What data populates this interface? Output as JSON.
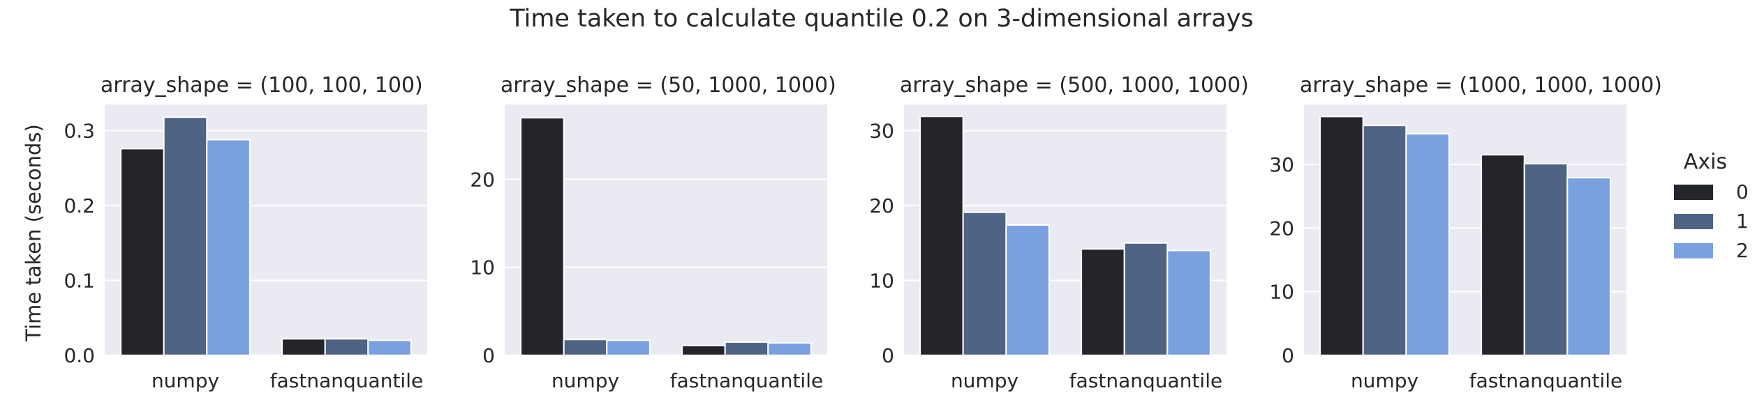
{
  "figure": {
    "title": "Time taken to calculate quantile 0.2 on 3-dimensional arrays",
    "ylabel": "Time taken (seconds)"
  },
  "legend": {
    "title": "Axis",
    "entries": [
      "0",
      "1",
      "2"
    ],
    "placement": "right"
  },
  "colors": {
    "panel_bg": "#eaeaf2",
    "grid": "#ffffff",
    "series": [
      "#23252b",
      "#4f6384",
      "#7aa0e0"
    ]
  },
  "chart_data": [
    {
      "type": "bar",
      "title": "array_shape = (100, 100, 100)",
      "categories": [
        "numpy",
        "fastnanquantile"
      ],
      "series": [
        {
          "name": "0",
          "values": [
            0.276,
            0.022
          ]
        },
        {
          "name": "1",
          "values": [
            0.318,
            0.022
          ]
        },
        {
          "name": "2",
          "values": [
            0.288,
            0.02
          ]
        }
      ],
      "ylim": [
        0,
        0.335
      ],
      "yticks": [
        0.0,
        0.1,
        0.2,
        0.3
      ],
      "ytick_labels": [
        "0.0",
        "0.1",
        "0.2",
        "0.3"
      ],
      "grid": true
    },
    {
      "type": "bar",
      "title": "array_shape = (50, 1000, 1000)",
      "categories": [
        "numpy",
        "fastnanquantile"
      ],
      "series": [
        {
          "name": "0",
          "values": [
            27.0,
            1.1
          ]
        },
        {
          "name": "1",
          "values": [
            1.8,
            1.5
          ]
        },
        {
          "name": "2",
          "values": [
            1.7,
            1.4
          ]
        }
      ],
      "ylim": [
        0,
        28.5
      ],
      "yticks": [
        0,
        10,
        20
      ],
      "ytick_labels": [
        "0",
        "10",
        "20"
      ],
      "grid": true
    },
    {
      "type": "bar",
      "title": "array_shape = (500, 1000, 1000)",
      "categories": [
        "numpy",
        "fastnanquantile"
      ],
      "series": [
        {
          "name": "0",
          "values": [
            31.9,
            14.2
          ]
        },
        {
          "name": "1",
          "values": [
            19.1,
            15.0
          ]
        },
        {
          "name": "2",
          "values": [
            17.4,
            14.0
          ]
        }
      ],
      "ylim": [
        0,
        33.5
      ],
      "yticks": [
        0,
        10,
        20,
        30
      ],
      "ytick_labels": [
        "0",
        "10",
        "20",
        "30"
      ],
      "grid": true
    },
    {
      "type": "bar",
      "title": "array_shape = (1000, 1000, 1000)",
      "categories": [
        "numpy",
        "fastnanquantile"
      ],
      "series": [
        {
          "name": "0",
          "values": [
            37.5,
            31.5
          ]
        },
        {
          "name": "1",
          "values": [
            36.1,
            30.1
          ]
        },
        {
          "name": "2",
          "values": [
            34.8,
            27.9
          ]
        }
      ],
      "ylim": [
        0,
        39.4
      ],
      "yticks": [
        0,
        10,
        20,
        30
      ],
      "ytick_labels": [
        "0",
        "10",
        "20",
        "30"
      ],
      "grid": true
    }
  ]
}
